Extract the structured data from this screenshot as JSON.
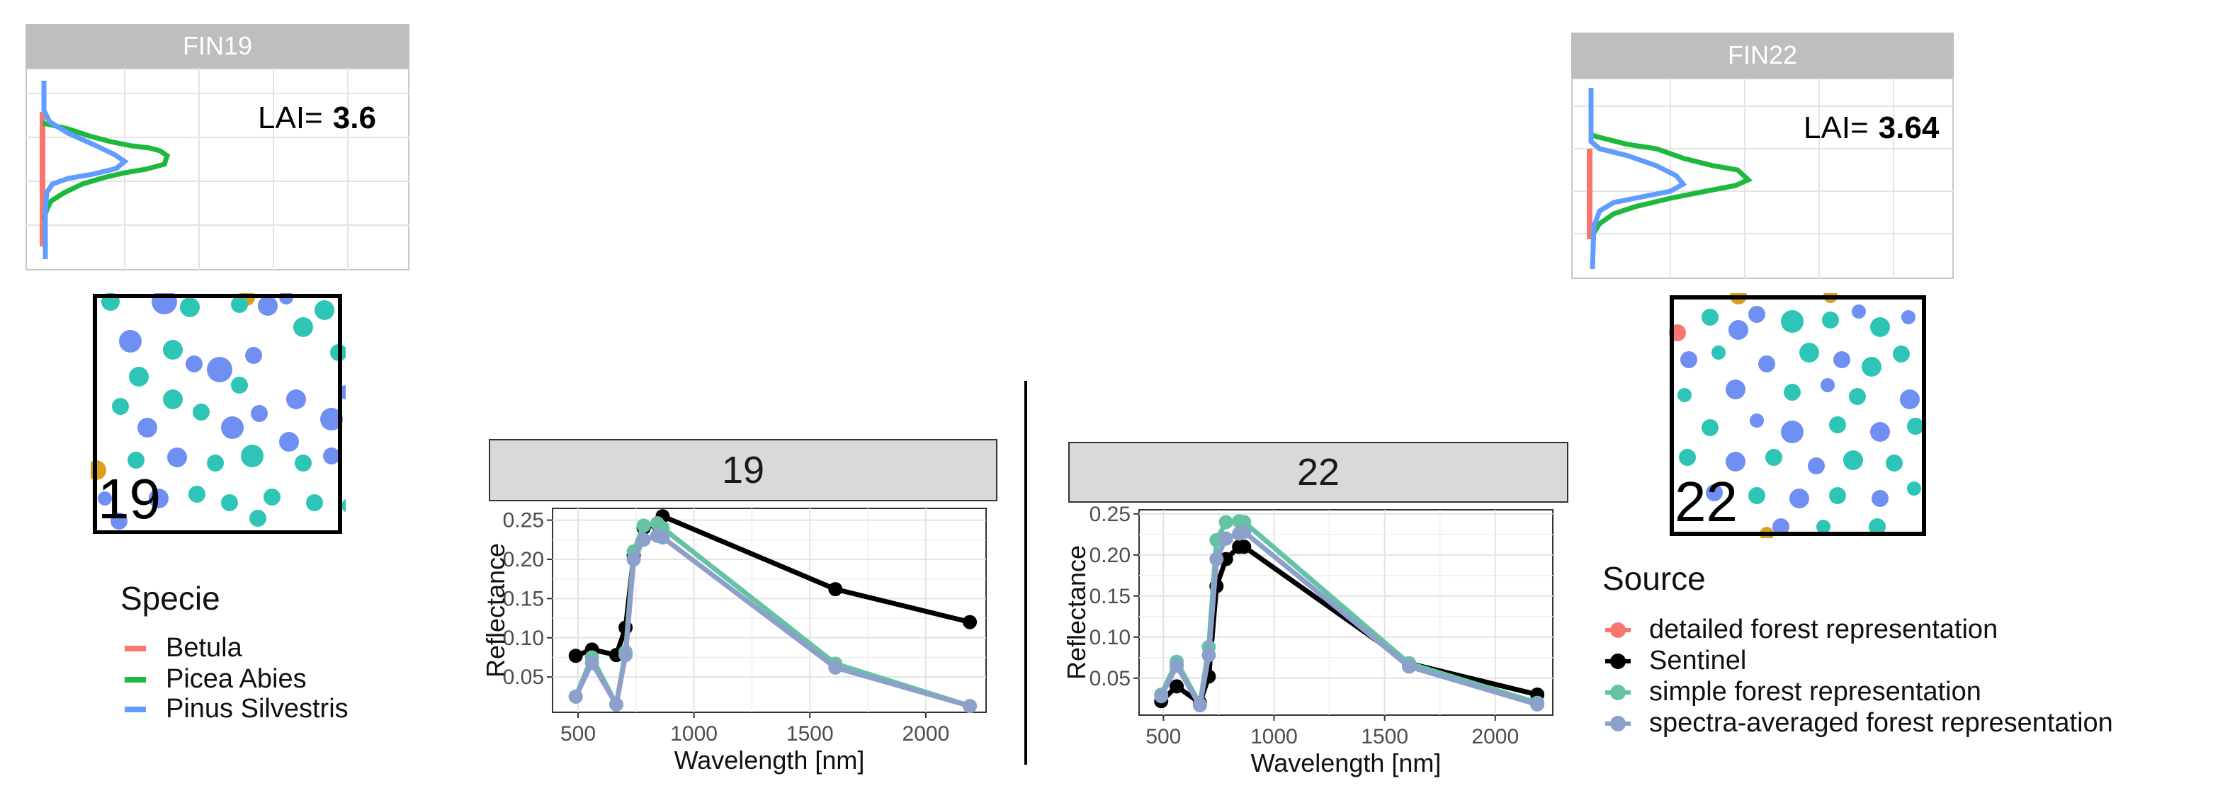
{
  "plots": {
    "fin19": {
      "title": "FIN19",
      "lai_label": "LAI=",
      "lai_value": "3.6",
      "scene_label": "19"
    },
    "fin22": {
      "title": "FIN22",
      "lai_label": "LAI=",
      "lai_value": "3.64",
      "scene_label": "22"
    }
  },
  "colors": {
    "betula": "#f8766d",
    "picea": "#1db83d",
    "pinus": "#619cff",
    "sentinel": "#000000",
    "simple": "#66c2a5",
    "averaged": "#8da0cb",
    "crown_teal": "#2ec4b6",
    "crown_blue": "#6f8ff2",
    "crown_gold": "#d8a21f"
  },
  "specie_legend": {
    "title": "Specie",
    "items": [
      {
        "label": "Betula",
        "color_key": "betula"
      },
      {
        "label": "Picea Abies",
        "color_key": "picea"
      },
      {
        "label": "Pinus Silvestris",
        "color_key": "pinus"
      }
    ]
  },
  "source_legend": {
    "title": "Source",
    "items": [
      {
        "label": "detailed forest representation",
        "color_key": "betula"
      },
      {
        "label": "Sentinel",
        "color_key": "sentinel"
      },
      {
        "label": "simple forest representation",
        "color_key": "simple"
      },
      {
        "label": "spectra-averaged forest representation",
        "color_key": "averaged"
      }
    ]
  },
  "chart_data": [
    {
      "type": "line",
      "title": "19",
      "xlabel": "Wavelength [nm]",
      "ylabel": "Reflectance",
      "xlim": [
        390,
        2260
      ],
      "ylim": [
        0.005,
        0.265
      ],
      "xticks": [
        500,
        1000,
        1500,
        2000
      ],
      "yticks": [
        0.05,
        0.1,
        0.15,
        0.2,
        0.25
      ],
      "ytick_labels": [
        "0.05",
        "0.10",
        "0.15",
        "0.20",
        "0.25"
      ],
      "series": [
        {
          "name": "Sentinel",
          "color_key": "sentinel",
          "x": [
            490,
            560,
            665,
            705,
            740,
            783,
            842,
            865,
            1610,
            2190
          ],
          "y": [
            0.077,
            0.085,
            0.078,
            0.113,
            0.205,
            0.24,
            0.245,
            0.255,
            0.162,
            0.12
          ]
        },
        {
          "name": "simple forest representation",
          "color_key": "simple",
          "x": [
            490,
            560,
            665,
            705,
            740,
            783,
            842,
            865,
            1610,
            2190
          ],
          "y": [
            0.025,
            0.075,
            0.015,
            0.082,
            0.21,
            0.243,
            0.246,
            0.24,
            0.067,
            0.013
          ]
        },
        {
          "name": "spectra-averaged forest representation",
          "color_key": "averaged",
          "x": [
            490,
            560,
            665,
            705,
            740,
            783,
            842,
            865,
            1610,
            2190
          ],
          "y": [
            0.025,
            0.068,
            0.015,
            0.078,
            0.2,
            0.225,
            0.23,
            0.228,
            0.062,
            0.013
          ]
        }
      ]
    },
    {
      "type": "line",
      "title": "22",
      "xlabel": "Wavelength [nm]",
      "ylabel": "Reflectance",
      "xlim": [
        390,
        2260
      ],
      "ylim": [
        0.005,
        0.255
      ],
      "xticks": [
        500,
        1000,
        1500,
        2000
      ],
      "yticks": [
        0.05,
        0.1,
        0.15,
        0.2,
        0.25
      ],
      "ytick_labels": [
        "0.05",
        "0.10",
        "0.15",
        "0.20",
        "0.25"
      ],
      "series": [
        {
          "name": "Sentinel",
          "color_key": "sentinel",
          "x": [
            490,
            560,
            665,
            705,
            740,
            783,
            842,
            865,
            1610,
            2190
          ],
          "y": [
            0.022,
            0.04,
            0.02,
            0.052,
            0.162,
            0.195,
            0.21,
            0.21,
            0.068,
            0.03
          ]
        },
        {
          "name": "simple forest representation",
          "color_key": "simple",
          "x": [
            490,
            560,
            665,
            705,
            740,
            783,
            842,
            865,
            1610,
            2190
          ],
          "y": [
            0.03,
            0.07,
            0.018,
            0.088,
            0.218,
            0.24,
            0.241,
            0.24,
            0.068,
            0.02
          ]
        },
        {
          "name": "spectra-averaged forest representation",
          "color_key": "averaged",
          "x": [
            490,
            560,
            665,
            705,
            740,
            783,
            842,
            865,
            1610,
            2190
          ],
          "y": [
            0.028,
            0.065,
            0.017,
            0.078,
            0.195,
            0.22,
            0.226,
            0.228,
            0.064,
            0.018
          ]
        }
      ]
    }
  ]
}
